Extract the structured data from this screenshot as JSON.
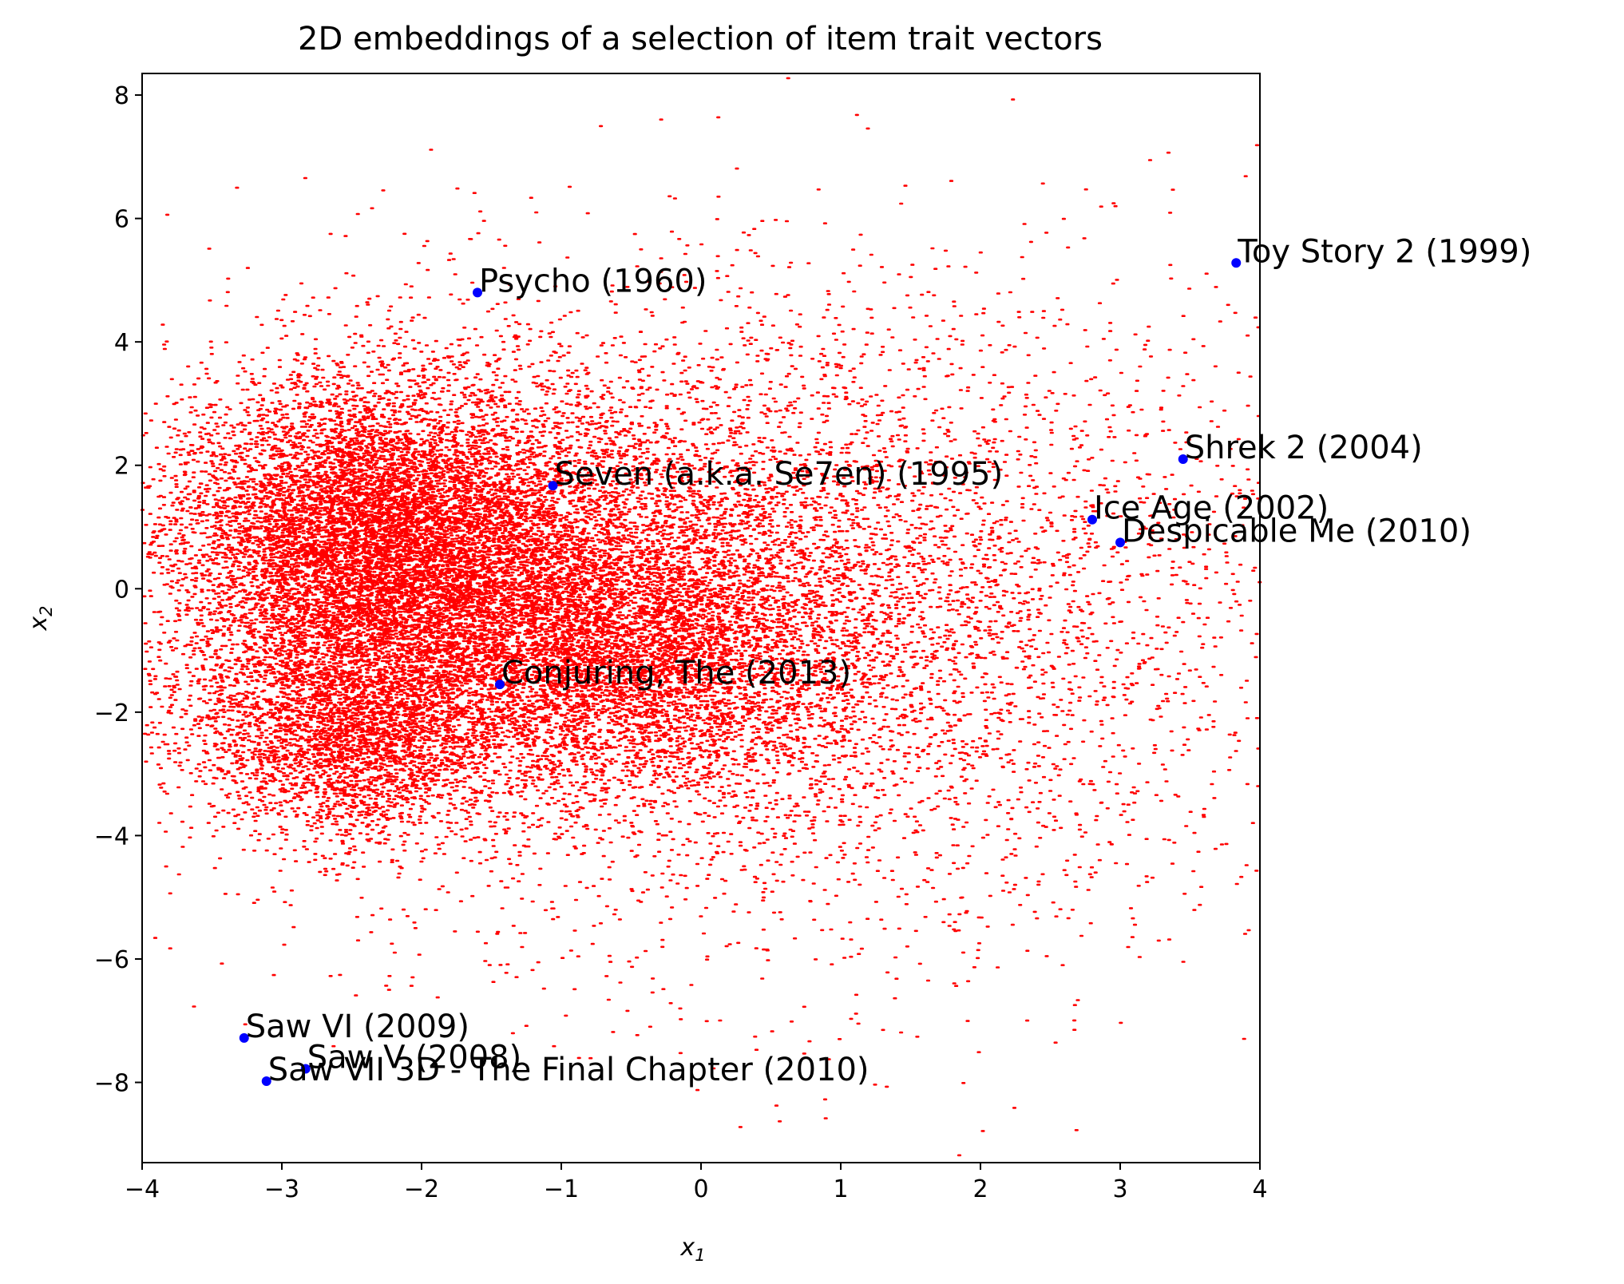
{
  "chart_data": {
    "type": "scatter",
    "title": "2D embeddings of a selection of item trait vectors",
    "xlabel": "x",
    "xlabel_sub": "1",
    "ylabel": "x",
    "ylabel_sub": "2",
    "xlim": [
      -4,
      4
    ],
    "ylim": [
      -9.3,
      8.35
    ],
    "xticks": [
      -4,
      -3,
      -2,
      -1,
      0,
      1,
      2,
      3,
      4
    ],
    "xtick_labels": [
      "−4",
      "−3",
      "−2",
      "−1",
      "0",
      "1",
      "2",
      "3",
      "4"
    ],
    "yticks": [
      -8,
      -6,
      -4,
      -2,
      0,
      2,
      4,
      6,
      8
    ],
    "ytick_labels": [
      "−8",
      "−6",
      "−4",
      "−2",
      "0",
      "2",
      "4",
      "6",
      "8"
    ],
    "grid": false,
    "background_points": {
      "color": "#ff0000",
      "description_of_density": "dense cloud centered near (-2.3, 0.8) with secondary lobes near (-0.5, -1.0) and (-2.5, -2.3)"
    },
    "highlight_color": "#0000ff",
    "labeled_points": [
      {
        "label": "Toy Story 2 (1999)",
        "x": 3.83,
        "y": 5.28
      },
      {
        "label": "Psycho (1960)",
        "x": -1.6,
        "y": 4.8
      },
      {
        "label": "Shrek 2 (2004)",
        "x": 3.45,
        "y": 2.1
      },
      {
        "label": "Seven (a.k.a. Se7en) (1995)",
        "x": -1.06,
        "y": 1.67
      },
      {
        "label": "Ice Age (2002)",
        "x": 2.8,
        "y": 1.12
      },
      {
        "label": "Despicable Me (2010)",
        "x": 3.0,
        "y": 0.75
      },
      {
        "label": "Conjuring, The (2013)",
        "x": -1.44,
        "y": -1.55
      },
      {
        "label": "Saw VI (2009)",
        "x": -3.27,
        "y": -7.28
      },
      {
        "label": "Saw V (2008)",
        "x": -2.83,
        "y": -7.78
      },
      {
        "label": "Saw VII 3D - The Final Chapter (2010)",
        "x": -3.11,
        "y": -7.98
      }
    ]
  }
}
